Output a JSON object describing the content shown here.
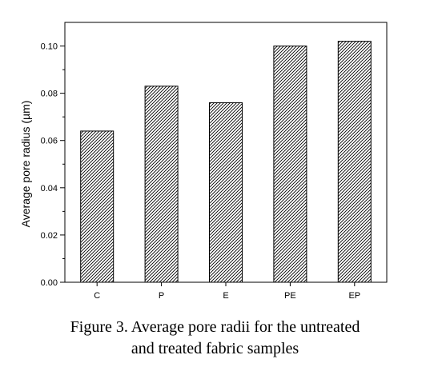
{
  "chart_data": {
    "type": "bar",
    "categories": [
      "C",
      "P",
      "E",
      "PE",
      "EP"
    ],
    "values": [
      0.064,
      0.083,
      0.076,
      0.1,
      0.102
    ],
    "ylabel": "Average pore radius (µm)",
    "xlabel": "",
    "ylim": [
      0,
      0.11
    ],
    "yticks": [
      "0.00",
      "0.02",
      "0.04",
      "0.06",
      "0.08",
      "0.10"
    ],
    "bar_pattern": "diagonal-hatch",
    "bar_color": "#000000",
    "grid": false,
    "legend": "none"
  },
  "caption": {
    "line1": "Figure 3. Average pore radii for the untreated",
    "line2": "and treated fabric samples"
  }
}
